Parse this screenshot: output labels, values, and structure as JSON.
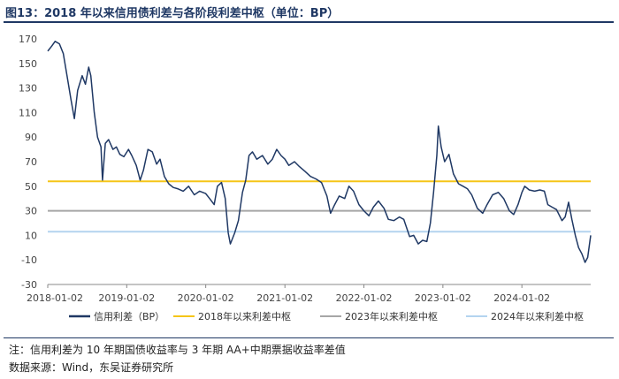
{
  "title": "图13：2018 年以来信用债利差与各阶段利差中枢（单位：BP）",
  "notes": {
    "note": "注：信用利差为 10 年期国债收益率与 3 年期 AA+中期票据收益率差值",
    "source": "数据来源：Wind，东吴证券研究所"
  },
  "colors": {
    "series": "#1f3864",
    "ref_2018": "#f5c518",
    "ref_2023": "#a6a6a6",
    "ref_2024": "#b4d4ef"
  },
  "chart_data": {
    "type": "line",
    "title": "",
    "xlabel": "",
    "ylabel": "",
    "ylim": [
      -30,
      170
    ],
    "yticks": [
      -30,
      -10,
      10,
      30,
      50,
      70,
      90,
      110,
      130,
      150,
      170
    ],
    "xlim": [
      "2018-01-02",
      "2024-11-15"
    ],
    "xticks": [
      "2018-01-02",
      "2019-01-02",
      "2020-01-02",
      "2021-01-02",
      "2022-01-02",
      "2023-01-02",
      "2024-01-02"
    ],
    "grid": false,
    "legend": "bottom",
    "series": [
      {
        "name": "信用利差（BP）",
        "points": [
          [
            "2018-01-02",
            160
          ],
          [
            "2018-01-20",
            164
          ],
          [
            "2018-02-05",
            168
          ],
          [
            "2018-02-25",
            166
          ],
          [
            "2018-03-15",
            158
          ],
          [
            "2018-04-01",
            140
          ],
          [
            "2018-04-20",
            120
          ],
          [
            "2018-05-05",
            105
          ],
          [
            "2018-05-20",
            128
          ],
          [
            "2018-06-10",
            140
          ],
          [
            "2018-06-25",
            133
          ],
          [
            "2018-07-10",
            147
          ],
          [
            "2018-07-20",
            140
          ],
          [
            "2018-08-05",
            110
          ],
          [
            "2018-08-20",
            90
          ],
          [
            "2018-09-05",
            82
          ],
          [
            "2018-09-12",
            55
          ],
          [
            "2018-09-25",
            85
          ],
          [
            "2018-10-10",
            88
          ],
          [
            "2018-10-30",
            80
          ],
          [
            "2018-11-15",
            82
          ],
          [
            "2018-12-01",
            76
          ],
          [
            "2018-12-20",
            74
          ],
          [
            "2019-01-10",
            80
          ],
          [
            "2019-01-25",
            75
          ],
          [
            "2019-02-15",
            67
          ],
          [
            "2019-03-05",
            55
          ],
          [
            "2019-03-20",
            63
          ],
          [
            "2019-04-10",
            80
          ],
          [
            "2019-04-30",
            78
          ],
          [
            "2019-05-20",
            68
          ],
          [
            "2019-06-05",
            72
          ],
          [
            "2019-06-25",
            58
          ],
          [
            "2019-07-15",
            52
          ],
          [
            "2019-08-05",
            49
          ],
          [
            "2019-08-25",
            48
          ],
          [
            "2019-09-20",
            46
          ],
          [
            "2019-10-15",
            50
          ],
          [
            "2019-11-10",
            43
          ],
          [
            "2019-12-05",
            46
          ],
          [
            "2020-01-02",
            44
          ],
          [
            "2020-01-20",
            40
          ],
          [
            "2020-02-10",
            35
          ],
          [
            "2020-02-25",
            50
          ],
          [
            "2020-03-15",
            53
          ],
          [
            "2020-04-01",
            40
          ],
          [
            "2020-04-15",
            12
          ],
          [
            "2020-04-25",
            3
          ],
          [
            "2020-05-15",
            12
          ],
          [
            "2020-06-01",
            22
          ],
          [
            "2020-06-20",
            45
          ],
          [
            "2020-07-05",
            55
          ],
          [
            "2020-07-20",
            75
          ],
          [
            "2020-08-05",
            78
          ],
          [
            "2020-08-25",
            72
          ],
          [
            "2020-09-20",
            75
          ],
          [
            "2020-10-15",
            68
          ],
          [
            "2020-11-05",
            72
          ],
          [
            "2020-11-25",
            80
          ],
          [
            "2020-12-15",
            75
          ],
          [
            "2021-01-02",
            72
          ],
          [
            "2021-01-20",
            67
          ],
          [
            "2021-02-15",
            70
          ],
          [
            "2021-03-10",
            66
          ],
          [
            "2021-04-05",
            62
          ],
          [
            "2021-04-30",
            58
          ],
          [
            "2021-05-25",
            56
          ],
          [
            "2021-06-20",
            53
          ],
          [
            "2021-07-15",
            42
          ],
          [
            "2021-08-01",
            28
          ],
          [
            "2021-08-20",
            35
          ],
          [
            "2021-09-10",
            42
          ],
          [
            "2021-10-05",
            40
          ],
          [
            "2021-10-25",
            50
          ],
          [
            "2021-11-15",
            46
          ],
          [
            "2021-12-10",
            35
          ],
          [
            "2022-01-02",
            30
          ],
          [
            "2022-01-25",
            26
          ],
          [
            "2022-02-15",
            33
          ],
          [
            "2022-03-10",
            38
          ],
          [
            "2022-04-05",
            32
          ],
          [
            "2022-04-25",
            23
          ],
          [
            "2022-05-20",
            22
          ],
          [
            "2022-06-15",
            25
          ],
          [
            "2022-07-05",
            23
          ],
          [
            "2022-08-01",
            9
          ],
          [
            "2022-08-20",
            10
          ],
          [
            "2022-09-10",
            3
          ],
          [
            "2022-09-30",
            6
          ],
          [
            "2022-10-20",
            5
          ],
          [
            "2022-11-05",
            20
          ],
          [
            "2022-11-20",
            45
          ],
          [
            "2022-12-05",
            75
          ],
          [
            "2022-12-12",
            99
          ],
          [
            "2022-12-25",
            82
          ],
          [
            "2023-01-10",
            70
          ],
          [
            "2023-01-30",
            76
          ],
          [
            "2023-02-20",
            60
          ],
          [
            "2023-03-15",
            52
          ],
          [
            "2023-04-05",
            50
          ],
          [
            "2023-04-25",
            48
          ],
          [
            "2023-05-15",
            43
          ],
          [
            "2023-06-10",
            32
          ],
          [
            "2023-07-05",
            28
          ],
          [
            "2023-07-25",
            35
          ],
          [
            "2023-08-20",
            43
          ],
          [
            "2023-09-15",
            45
          ],
          [
            "2023-10-10",
            40
          ],
          [
            "2023-11-05",
            30
          ],
          [
            "2023-11-25",
            27
          ],
          [
            "2023-12-15",
            35
          ],
          [
            "2024-01-02",
            45
          ],
          [
            "2024-01-15",
            50
          ],
          [
            "2024-02-05",
            47
          ],
          [
            "2024-03-01",
            46
          ],
          [
            "2024-03-25",
            47
          ],
          [
            "2024-04-15",
            46
          ],
          [
            "2024-05-01",
            35
          ],
          [
            "2024-05-20",
            33
          ],
          [
            "2024-06-10",
            31
          ],
          [
            "2024-07-05",
            22
          ],
          [
            "2024-07-20",
            25
          ],
          [
            "2024-08-05",
            37
          ],
          [
            "2024-08-20",
            23
          ],
          [
            "2024-09-05",
            10
          ],
          [
            "2024-09-20",
            0
          ],
          [
            "2024-10-05",
            -5
          ],
          [
            "2024-10-20",
            -12
          ],
          [
            "2024-11-01",
            -8
          ],
          [
            "2024-11-15",
            10
          ]
        ]
      },
      {
        "name": "2018年以来利差中枢",
        "constant": 54
      },
      {
        "name": "2023年以来利差中枢",
        "constant": 30
      },
      {
        "name": "2024年以来利差中枢",
        "constant": 13
      }
    ]
  }
}
